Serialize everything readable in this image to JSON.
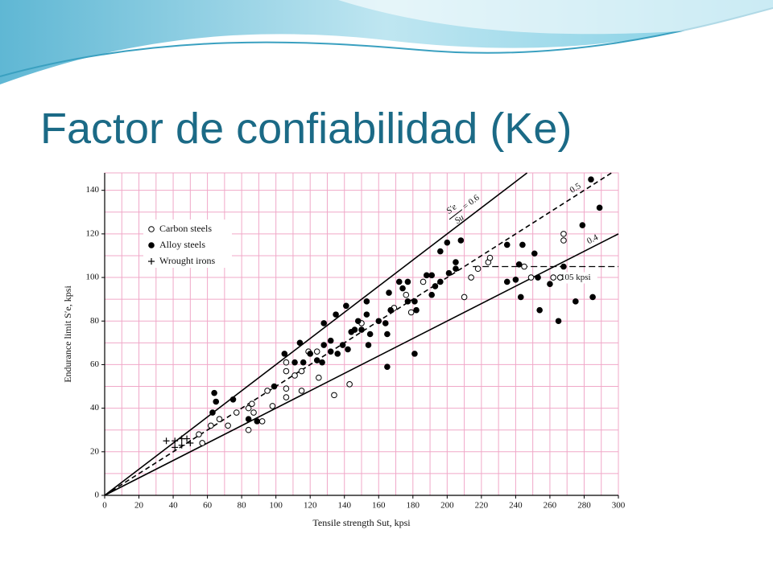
{
  "slide_title": "Factor de confiabilidad (Ke)",
  "chart_data": {
    "type": "scatter",
    "xlabel": "Tensile strength Sut, kpsi",
    "ylabel": "Endurance limit S′e, kpsi",
    "xlim": [
      0,
      300
    ],
    "ylim": [
      0,
      148
    ],
    "xticks": [
      0,
      20,
      40,
      60,
      80,
      100,
      120,
      140,
      160,
      180,
      200,
      220,
      240,
      260,
      280,
      300
    ],
    "yticks": [
      0,
      20,
      40,
      60,
      80,
      100,
      120,
      140
    ],
    "xminor": [
      10,
      30,
      50,
      70,
      90,
      110,
      130,
      150,
      170,
      190,
      210,
      230,
      250,
      270,
      290
    ],
    "yminor": [
      10,
      30,
      50,
      70,
      90,
      110,
      130
    ],
    "grid": true,
    "grid_color": "#f0a8c8",
    "legend": "upper left",
    "series": [
      {
        "name": "Carbon steels",
        "marker": "open-circle",
        "color": "#000000",
        "x": [
          55,
          57,
          62,
          67,
          72,
          77,
          84,
          86,
          84,
          87,
          92,
          95,
          98,
          106,
          106,
          106,
          106,
          111,
          115,
          115,
          119,
          124,
          125,
          134,
          143,
          150,
          169,
          176,
          179,
          186,
          210,
          214,
          218,
          224,
          225,
          245,
          249,
          262,
          266,
          268,
          268
        ],
        "values": [
          28,
          24,
          32,
          35,
          32,
          38,
          40,
          42,
          30,
          38,
          34,
          48,
          41,
          61,
          49,
          45,
          57,
          55,
          57,
          48,
          66,
          66,
          54,
          46,
          51,
          79,
          86,
          92,
          84,
          98,
          91,
          100,
          104,
          107,
          109,
          105,
          100,
          100,
          100,
          120,
          117
        ]
      },
      {
        "name": "Alloy steels",
        "marker": "filled-circle",
        "color": "#000000",
        "x": [
          64,
          65,
          63,
          75,
          84,
          89,
          99,
          105,
          111,
          114,
          116,
          120,
          124,
          127,
          128,
          132,
          132,
          128,
          136,
          135,
          139,
          141,
          142,
          144,
          146,
          148,
          150,
          153,
          153,
          155,
          154,
          160,
          164,
          165,
          165,
          167,
          166,
          172,
          174,
          177,
          177,
          181,
          181,
          182,
          188,
          191,
          191,
          193,
          196,
          196,
          200,
          201,
          205,
          205,
          208,
          235,
          235,
          240,
          242,
          243,
          244,
          251,
          253,
          254,
          260,
          265,
          268,
          275,
          279,
          284,
          285,
          289
        ],
        "values": [
          47,
          43,
          38,
          44,
          35,
          34,
          50,
          65,
          61,
          70,
          61,
          65,
          62,
          61,
          69,
          66,
          71,
          79,
          65,
          83,
          69,
          87,
          67,
          75,
          76,
          80,
          76,
          83,
          89,
          74,
          69,
          80,
          79,
          74,
          59,
          85,
          93,
          98,
          95,
          89,
          98,
          89,
          65,
          85,
          101,
          92,
          101,
          96,
          98,
          112,
          116,
          102,
          107,
          104,
          117,
          115,
          98,
          99,
          106,
          91,
          115,
          111,
          100,
          85,
          97,
          80,
          105,
          89,
          124,
          145,
          91,
          132
        ]
      },
      {
        "name": "Wrought irons",
        "marker": "plus",
        "color": "#000000",
        "x": [
          36,
          41,
          45,
          48,
          45,
          50,
          41
        ],
        "values": [
          25,
          25,
          26,
          26,
          23,
          24,
          22
        ]
      }
    ],
    "lines": [
      {
        "slope": 0.6,
        "style": "solid",
        "label": "= 0.6",
        "fraction": [
          "S′e",
          "Su"
        ]
      },
      {
        "slope": 0.5,
        "style": "dashed",
        "label": "0.5"
      },
      {
        "slope": 0.4,
        "style": "solid",
        "label": "0.4"
      }
    ],
    "hline": {
      "value": 105,
      "start": 215,
      "label": "105 kpsi",
      "style": "dashed"
    }
  }
}
